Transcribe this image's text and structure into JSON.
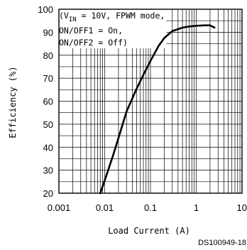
{
  "chart_data": {
    "type": "line",
    "title": "",
    "xlabel": "Load Current (A)",
    "ylabel": "Efficiency (%)",
    "x_scale": "log",
    "xlim": [
      0.001,
      10
    ],
    "ylim": [
      20,
      100
    ],
    "x_ticks": [
      "0.001",
      "0.01",
      "0.1",
      "1",
      "10"
    ],
    "y_ticks": [
      "20",
      "30",
      "40",
      "50",
      "60",
      "70",
      "80",
      "90",
      "100"
    ],
    "grid": true,
    "annotation": {
      "line1_pre": "(V",
      "line1_sub": "IN",
      "line1_post": " = 10V, FPWM mode,",
      "line2": "ON/OFF1 = On,",
      "line3": "ON/OFF2 = Off)"
    },
    "figure_id": "DS100949-18",
    "series": [
      {
        "x": [
          0.008,
          0.01,
          0.015,
          0.02,
          0.03,
          0.05,
          0.07,
          0.1,
          0.15,
          0.2,
          0.3,
          0.5,
          0.7,
          1,
          1.5,
          2,
          2.5
        ],
        "y": [
          20,
          25.5,
          36,
          44,
          55.5,
          65.5,
          71.5,
          77.5,
          84,
          87.5,
          90.5,
          92,
          92.5,
          92.8,
          93,
          93,
          92
        ]
      }
    ]
  }
}
